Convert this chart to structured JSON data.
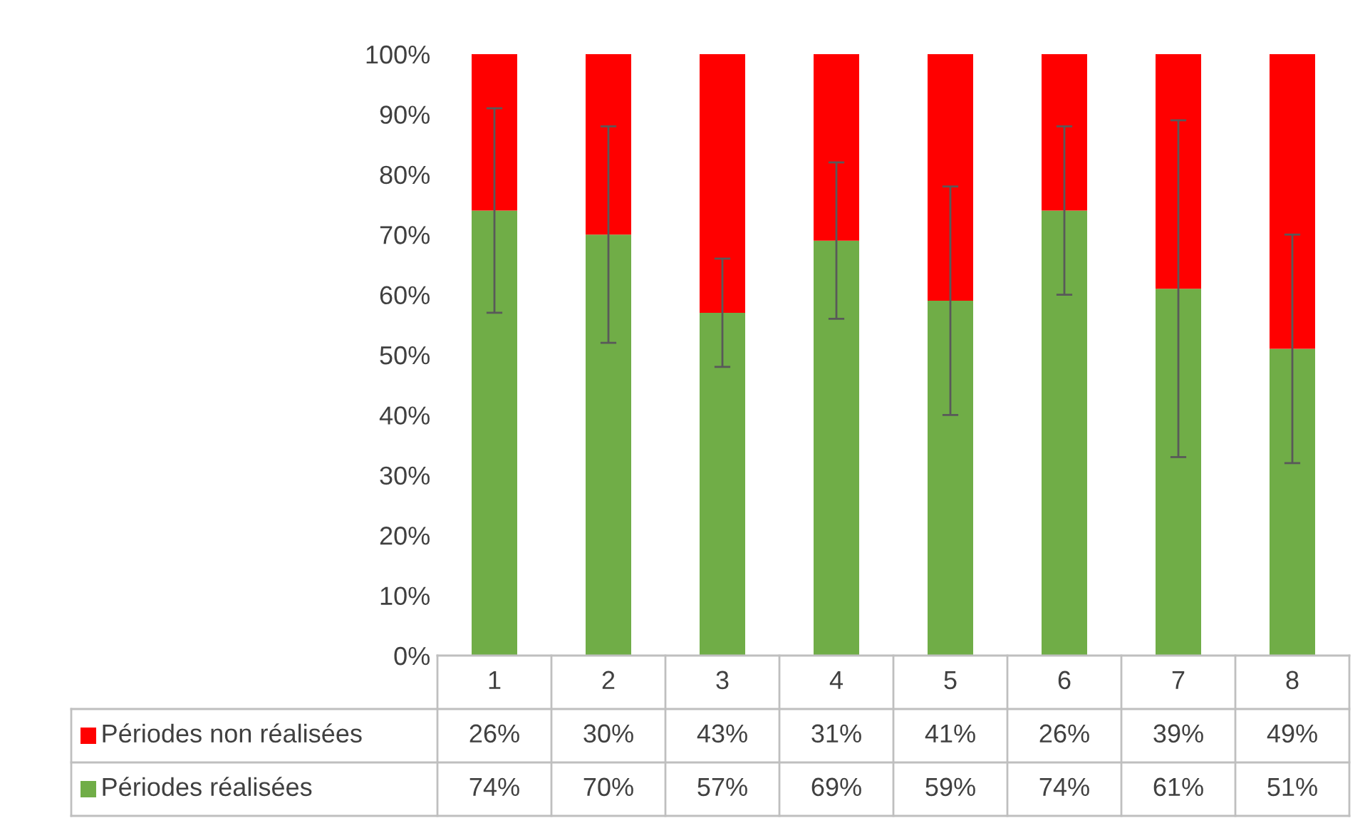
{
  "chart_data": {
    "type": "bar",
    "stacked": true,
    "categories": [
      "1",
      "2",
      "3",
      "4",
      "5",
      "6",
      "7",
      "8"
    ],
    "series": [
      {
        "name": "Périodes réalisées",
        "color": "#70ad47",
        "values": [
          74,
          70,
          57,
          69,
          59,
          74,
          61,
          51
        ],
        "errors": [
          17,
          18,
          9,
          13,
          19,
          14,
          28,
          19
        ],
        "value_labels": [
          "74%",
          "70%",
          "57%",
          "69%",
          "59%",
          "74%",
          "61%",
          "51%"
        ]
      },
      {
        "name": "Périodes non réalisées",
        "color": "#ff0000",
        "values": [
          26,
          30,
          43,
          31,
          41,
          26,
          39,
          49
        ],
        "value_labels": [
          "26%",
          "30%",
          "43%",
          "31%",
          "41%",
          "26%",
          "39%",
          "49%"
        ]
      }
    ],
    "ylim": [
      0,
      100
    ],
    "yticks": [
      {
        "value": 0,
        "label": "0%"
      },
      {
        "value": 10,
        "label": "10%"
      },
      {
        "value": 20,
        "label": "20%"
      },
      {
        "value": 30,
        "label": "30%"
      },
      {
        "value": 40,
        "label": "40%"
      },
      {
        "value": 50,
        "label": "50%"
      },
      {
        "value": 60,
        "label": "60%"
      },
      {
        "value": 70,
        "label": "70%"
      },
      {
        "value": 80,
        "label": "80%"
      },
      {
        "value": 90,
        "label": "90%"
      },
      {
        "value": 100,
        "label": "100%"
      }
    ],
    "grid": false,
    "legend": "bottom"
  }
}
